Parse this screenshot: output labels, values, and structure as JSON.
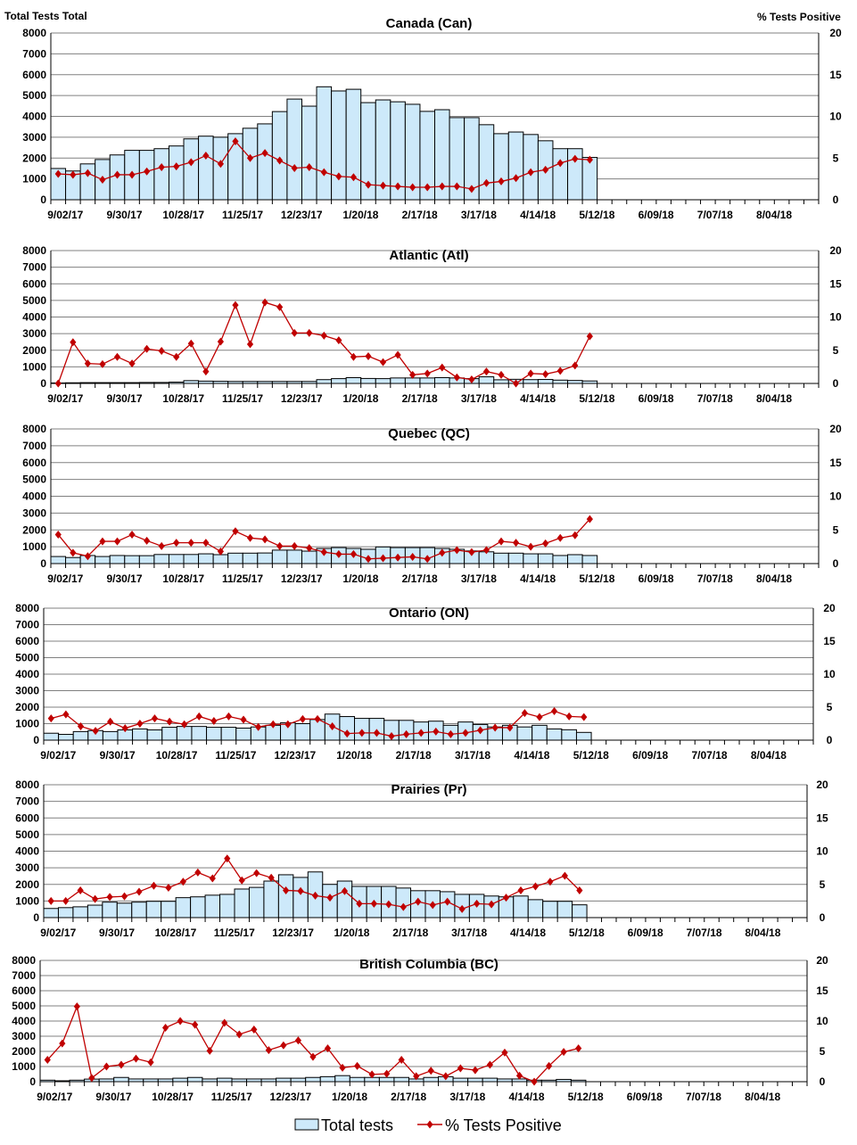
{
  "header": {
    "left_axis_title": "Total Tests Total",
    "right_axis_title": "% Tests Positive"
  },
  "legend": {
    "bars_label": "Total tests",
    "line_label": "% Tests Positive"
  },
  "colors": {
    "bar_fill": "#cde9fa",
    "line": "#c00000",
    "grid": "#808080"
  },
  "chart_data": [
    {
      "type": "bar+line",
      "title": "Canada (Can)",
      "x_tick_labels": [
        "9/02/17",
        "9/30/17",
        "10/28/17",
        "11/25/17",
        "12/23/17",
        "1/20/18",
        "2/17/18",
        "3/17/18",
        "4/14/18",
        "5/12/18",
        "6/09/18",
        "7/07/18",
        "8/04/18"
      ],
      "n_weeks": 52,
      "y_left_ticks": [
        "0",
        "1000",
        "2000",
        "3000",
        "4000",
        "5000",
        "6000",
        "7000",
        "8000"
      ],
      "y_right_ticks": [
        "0",
        "5",
        "10",
        "15",
        "20"
      ],
      "ylim_left": [
        0,
        8000
      ],
      "ylim_right": [
        0,
        20
      ],
      "series": [
        {
          "name": "Total tests",
          "values": [
            1500,
            1380,
            1720,
            1930,
            2150,
            2370,
            2370,
            2450,
            2580,
            2920,
            3050,
            3000,
            3170,
            3430,
            3640,
            4230,
            4830,
            4490,
            5420,
            5220,
            5300,
            4660,
            4790,
            4700,
            4580,
            4240,
            4320,
            3940,
            3940,
            3600,
            3170,
            3250,
            3130,
            2830,
            2450,
            2450,
            2030
          ]
        },
        {
          "name": "% Tests Positive",
          "values": [
            3.1,
            3.0,
            3.2,
            2.4,
            3.0,
            3.0,
            3.4,
            3.9,
            4.0,
            4.5,
            5.3,
            4.3,
            7.0,
            5.0,
            5.6,
            4.7,
            3.8,
            3.9,
            3.3,
            2.8,
            2.7,
            1.8,
            1.7,
            1.6,
            1.5,
            1.5,
            1.6,
            1.6,
            1.3,
            2.0,
            2.2,
            2.6,
            3.3,
            3.6,
            4.4,
            4.9,
            4.8
          ]
        }
      ]
    },
    {
      "type": "bar+line",
      "title": "Atlantic (Atl)",
      "x_tick_labels": [
        "9/02/17",
        "9/30/17",
        "10/28/17",
        "11/25/17",
        "12/23/17",
        "1/20/18",
        "2/17/18",
        "3/17/18",
        "4/14/18",
        "5/12/18",
        "6/09/18",
        "7/07/18",
        "8/04/18"
      ],
      "n_weeks": 52,
      "y_left_ticks": [
        "0",
        "1000",
        "2000",
        "3000",
        "4000",
        "5000",
        "6000",
        "7000",
        "8000"
      ],
      "y_right_ticks": [
        "0",
        "5",
        "10",
        "15",
        "20"
      ],
      "ylim_left": [
        0,
        8000
      ],
      "ylim_right": [
        0,
        20
      ],
      "series": [
        {
          "name": "Total tests",
          "values": [
            30,
            40,
            50,
            50,
            50,
            50,
            60,
            60,
            80,
            170,
            140,
            130,
            120,
            120,
            120,
            120,
            120,
            120,
            230,
            290,
            350,
            300,
            290,
            330,
            330,
            330,
            350,
            330,
            290,
            400,
            220,
            250,
            230,
            240,
            200,
            180,
            150
          ]
        },
        {
          "name": "% Tests Positive",
          "values": [
            0,
            6.2,
            3.0,
            2.9,
            4.0,
            3.0,
            5.2,
            4.9,
            4.0,
            6.0,
            1.8,
            6.3,
            11.8,
            5.9,
            12.2,
            11.5,
            7.6,
            7.6,
            7.2,
            6.5,
            4.0,
            4.1,
            3.2,
            4.3,
            1.3,
            1.5,
            2.4,
            0.9,
            0.6,
            1.8,
            1.3,
            0,
            1.5,
            1.4,
            1.9,
            2.7,
            7.1
          ]
        }
      ]
    },
    {
      "type": "bar+line",
      "title": "Quebec (QC)",
      "x_tick_labels": [
        "9/02/17",
        "9/30/17",
        "10/28/17",
        "11/25/17",
        "12/23/17",
        "1/20/18",
        "2/17/18",
        "3/17/18",
        "4/14/18",
        "5/12/18",
        "6/09/18",
        "7/07/18",
        "8/04/18"
      ],
      "n_weeks": 52,
      "y_left_ticks": [
        "0",
        "1000",
        "2000",
        "3000",
        "4000",
        "5000",
        "6000",
        "7000",
        "8000"
      ],
      "y_right_ticks": [
        "0",
        "5",
        "10",
        "15",
        "20"
      ],
      "ylim_left": [
        0,
        8000
      ],
      "ylim_right": [
        0,
        20
      ],
      "series": [
        {
          "name": "Total tests",
          "values": [
            420,
            360,
            480,
            420,
            480,
            470,
            470,
            540,
            540,
            540,
            580,
            530,
            620,
            620,
            630,
            800,
            800,
            740,
            900,
            950,
            900,
            850,
            990,
            950,
            950,
            950,
            900,
            850,
            750,
            700,
            620,
            620,
            580,
            580,
            480,
            530,
            480
          ]
        },
        {
          "name": "% Tests Positive",
          "values": [
            4.3,
            1.6,
            1.1,
            3.3,
            3.3,
            4.3,
            3.4,
            2.6,
            3.1,
            3.1,
            3.1,
            1.8,
            4.8,
            3.8,
            3.6,
            2.6,
            2.6,
            2.3,
            1.7,
            1.4,
            1.4,
            0.7,
            0.8,
            0.9,
            1.0,
            0.7,
            1.6,
            2.0,
            1.7,
            2.0,
            3.3,
            3.1,
            2.5,
            3.0,
            3.8,
            4.2,
            6.6
          ]
        }
      ]
    },
    {
      "type": "bar+line",
      "title": "Ontario (ON)",
      "x_tick_labels": [
        "9/02/17",
        "9/30/17",
        "10/28/17",
        "11/25/17",
        "12/23/17",
        "1/20/18",
        "2/17/18",
        "3/17/18",
        "4/14/18",
        "5/12/18",
        "6/09/18",
        "7/07/18",
        "8/04/18"
      ],
      "n_weeks": 52,
      "y_left_ticks": [
        "0",
        "1000",
        "2000",
        "3000",
        "4000",
        "5000",
        "6000",
        "7000",
        "8000"
      ],
      "y_right_ticks": [
        "0",
        "5",
        "10",
        "15",
        "20"
      ],
      "ylim_left": [
        0,
        8000
      ],
      "ylim_right": [
        0,
        20
      ],
      "series": [
        {
          "name": "Total tests",
          "values": [
            420,
            350,
            520,
            580,
            520,
            620,
            680,
            620,
            780,
            830,
            830,
            780,
            780,
            730,
            800,
            900,
            1050,
            1000,
            1250,
            1580,
            1430,
            1320,
            1320,
            1200,
            1200,
            1100,
            1150,
            900,
            1100,
            950,
            800,
            900,
            800,
            900,
            680,
            630,
            470
          ]
        },
        {
          "name": "% Tests Positive",
          "values": [
            3.3,
            3.9,
            2.1,
            1.4,
            2.8,
            1.8,
            2.5,
            3.3,
            2.8,
            2.4,
            3.6,
            2.9,
            3.6,
            3.1,
            2.0,
            2.4,
            2.4,
            3.2,
            3.2,
            2.1,
            1.0,
            1.1,
            1.1,
            0.6,
            0.9,
            1.1,
            1.3,
            0.9,
            1.1,
            1.5,
            1.9,
            1.9,
            4.1,
            3.5,
            4.4,
            3.6,
            3.5
          ]
        }
      ]
    },
    {
      "type": "bar+line",
      "title": "Prairies (Pr)",
      "x_tick_labels": [
        "9/02/17",
        "9/30/17",
        "10/28/17",
        "11/25/17",
        "12/23/17",
        "1/20/18",
        "2/17/18",
        "3/17/18",
        "4/14/18",
        "5/12/18",
        "6/09/18",
        "7/07/18",
        "8/04/18"
      ],
      "n_weeks": 52,
      "y_left_ticks": [
        "0",
        "1000",
        "2000",
        "3000",
        "4000",
        "5000",
        "6000",
        "7000",
        "8000"
      ],
      "y_right_ticks": [
        "0",
        "5",
        "10",
        "15",
        "20"
      ],
      "ylim_left": [
        0,
        8000
      ],
      "ylim_right": [
        0,
        20
      ],
      "series": [
        {
          "name": "Total tests",
          "values": [
            550,
            600,
            650,
            750,
            930,
            870,
            930,
            980,
            980,
            1200,
            1250,
            1350,
            1400,
            1720,
            1820,
            2200,
            2580,
            2420,
            2750,
            2000,
            2200,
            1880,
            1880,
            1880,
            1780,
            1620,
            1620,
            1560,
            1400,
            1400,
            1300,
            1250,
            1300,
            1080,
            980,
            980,
            770
          ]
        },
        {
          "name": "% Tests Positive",
          "values": [
            2.5,
            2.5,
            4.1,
            2.8,
            3.1,
            3.2,
            3.9,
            4.8,
            4.5,
            5.4,
            6.8,
            5.9,
            8.9,
            5.6,
            6.7,
            6.0,
            4.1,
            4.0,
            3.3,
            3.0,
            4.0,
            2.1,
            2.1,
            2.0,
            1.6,
            2.4,
            1.9,
            2.4,
            1.3,
            2.1,
            2.0,
            3.0,
            4.1,
            4.7,
            5.4,
            6.3,
            4.1
          ]
        }
      ]
    },
    {
      "type": "bar+line",
      "title": "British Columbia (BC)",
      "x_tick_labels": [
        "9/02/17",
        "9/30/17",
        "10/28/17",
        "11/25/17",
        "12/23/17",
        "1/20/18",
        "2/17/18",
        "3/17/18",
        "4/14/18",
        "5/12/18",
        "6/09/18",
        "7/07/18",
        "8/04/18"
      ],
      "n_weeks": 52,
      "y_left_ticks": [
        "0",
        "1000",
        "2000",
        "3000",
        "4000",
        "5000",
        "6000",
        "7000",
        "8000"
      ],
      "y_right_ticks": [
        "0",
        "5",
        "10",
        "15",
        "20"
      ],
      "ylim_left": [
        0,
        8000
      ],
      "ylim_right": [
        0,
        20
      ],
      "series": [
        {
          "name": "Total tests",
          "values": [
            100,
            60,
            100,
            170,
            180,
            280,
            180,
            180,
            180,
            230,
            280,
            180,
            230,
            180,
            180,
            180,
            230,
            230,
            280,
            330,
            400,
            280,
            280,
            280,
            280,
            180,
            280,
            330,
            230,
            230,
            230,
            180,
            180,
            100,
            100,
            150,
            100
          ]
        },
        {
          "name": "% Tests Positive",
          "values": [
            3.6,
            6.3,
            12.4,
            0.6,
            2.5,
            2.8,
            3.8,
            3.2,
            8.9,
            10.0,
            9.4,
            5.1,
            9.7,
            7.8,
            8.6,
            5.2,
            6.0,
            6.8,
            4.1,
            5.5,
            2.3,
            2.6,
            1.2,
            1.3,
            3.6,
            0.9,
            1.8,
            0.9,
            2.2,
            1.9,
            2.8,
            4.8,
            1.0,
            0,
            2.6,
            4.9,
            5.5
          ]
        }
      ]
    }
  ]
}
